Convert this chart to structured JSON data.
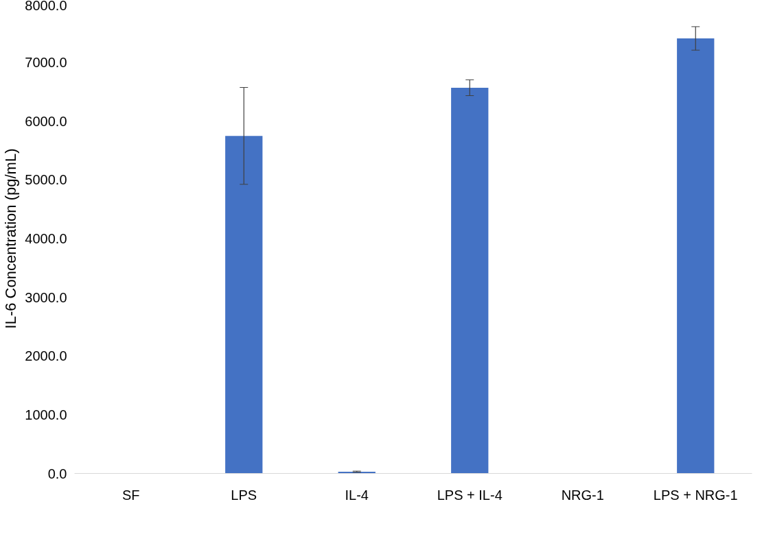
{
  "chart_data": {
    "type": "bar",
    "ylabel": "IL-6 Concentration (pg/mL)",
    "categories": [
      "SF",
      "LPS",
      "IL-4",
      "LPS + IL-4",
      "NRG-1",
      "LPS + NRG-1"
    ],
    "values": [
      null,
      5750,
      30,
      6570,
      null,
      7410
    ],
    "errors": [
      null,
      825,
      10,
      135,
      null,
      200
    ],
    "color": "#4472c4",
    "ylim": [
      0,
      8000
    ],
    "yticks": [
      {
        "value": 0,
        "label": "0.0"
      },
      {
        "value": 1000,
        "label": "1000.0"
      },
      {
        "value": 2000,
        "label": "2000.0"
      },
      {
        "value": 3000,
        "label": "3000.0"
      },
      {
        "value": 4000,
        "label": "4000.0"
      },
      {
        "value": 5000,
        "label": "5000.0"
      },
      {
        "value": 6000,
        "label": "6000.0"
      },
      {
        "value": 7000,
        "label": "7000.0"
      },
      {
        "value": 8000,
        "label": "8000.0"
      }
    ],
    "grid": false
  }
}
